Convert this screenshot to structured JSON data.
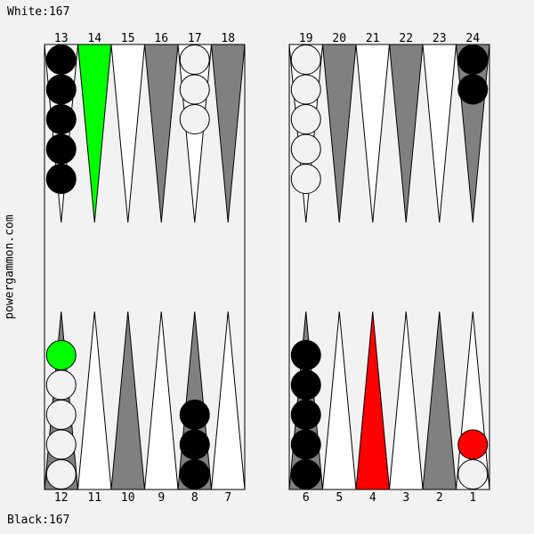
{
  "scores": {
    "top": "White:167",
    "bottom": "Black:167"
  },
  "site_label": "powergammon.com",
  "colors": {
    "background": "#f2f2f2",
    "board": "#f2f2f2",
    "dark_point": "#808080",
    "light_point": "#ffffff",
    "highlight_from": "#00ff00",
    "highlight_to": "#ff0000",
    "checker_black": "#000000",
    "checker_white": "#f2f2f2"
  },
  "highlights": {
    "from_point": 14,
    "to_point": 4
  },
  "points": [
    {
      "num": 1,
      "label": "1",
      "checkers": [
        "white",
        "red"
      ]
    },
    {
      "num": 2,
      "label": "2",
      "checkers": []
    },
    {
      "num": 3,
      "label": "3",
      "checkers": []
    },
    {
      "num": 4,
      "label": "4",
      "checkers": []
    },
    {
      "num": 5,
      "label": "5",
      "checkers": []
    },
    {
      "num": 6,
      "label": "6",
      "checkers": [
        "black",
        "black",
        "black",
        "black",
        "black"
      ]
    },
    {
      "num": 7,
      "label": "7",
      "checkers": []
    },
    {
      "num": 8,
      "label": "8",
      "checkers": [
        "black",
        "black",
        "black"
      ]
    },
    {
      "num": 9,
      "label": "9",
      "checkers": []
    },
    {
      "num": 10,
      "label": "10",
      "checkers": []
    },
    {
      "num": 11,
      "label": "11",
      "checkers": []
    },
    {
      "num": 12,
      "label": "12",
      "checkers": [
        "white",
        "white",
        "white",
        "white",
        "green"
      ]
    },
    {
      "num": 13,
      "label": "13",
      "checkers": [
        "black",
        "black",
        "black",
        "black",
        "black"
      ]
    },
    {
      "num": 14,
      "label": "14",
      "checkers": []
    },
    {
      "num": 15,
      "label": "15",
      "checkers": []
    },
    {
      "num": 16,
      "label": "16",
      "checkers": []
    },
    {
      "num": 17,
      "label": "17",
      "checkers": [
        "white",
        "white",
        "white"
      ]
    },
    {
      "num": 18,
      "label": "18",
      "checkers": []
    },
    {
      "num": 19,
      "label": "19",
      "checkers": [
        "white",
        "white",
        "white",
        "white",
        "white"
      ]
    },
    {
      "num": 20,
      "label": "20",
      "checkers": []
    },
    {
      "num": 21,
      "label": "21",
      "checkers": []
    },
    {
      "num": 22,
      "label": "22",
      "checkers": []
    },
    {
      "num": 23,
      "label": "23",
      "checkers": []
    },
    {
      "num": 24,
      "label": "24",
      "checkers": [
        "black",
        "black"
      ]
    }
  ]
}
